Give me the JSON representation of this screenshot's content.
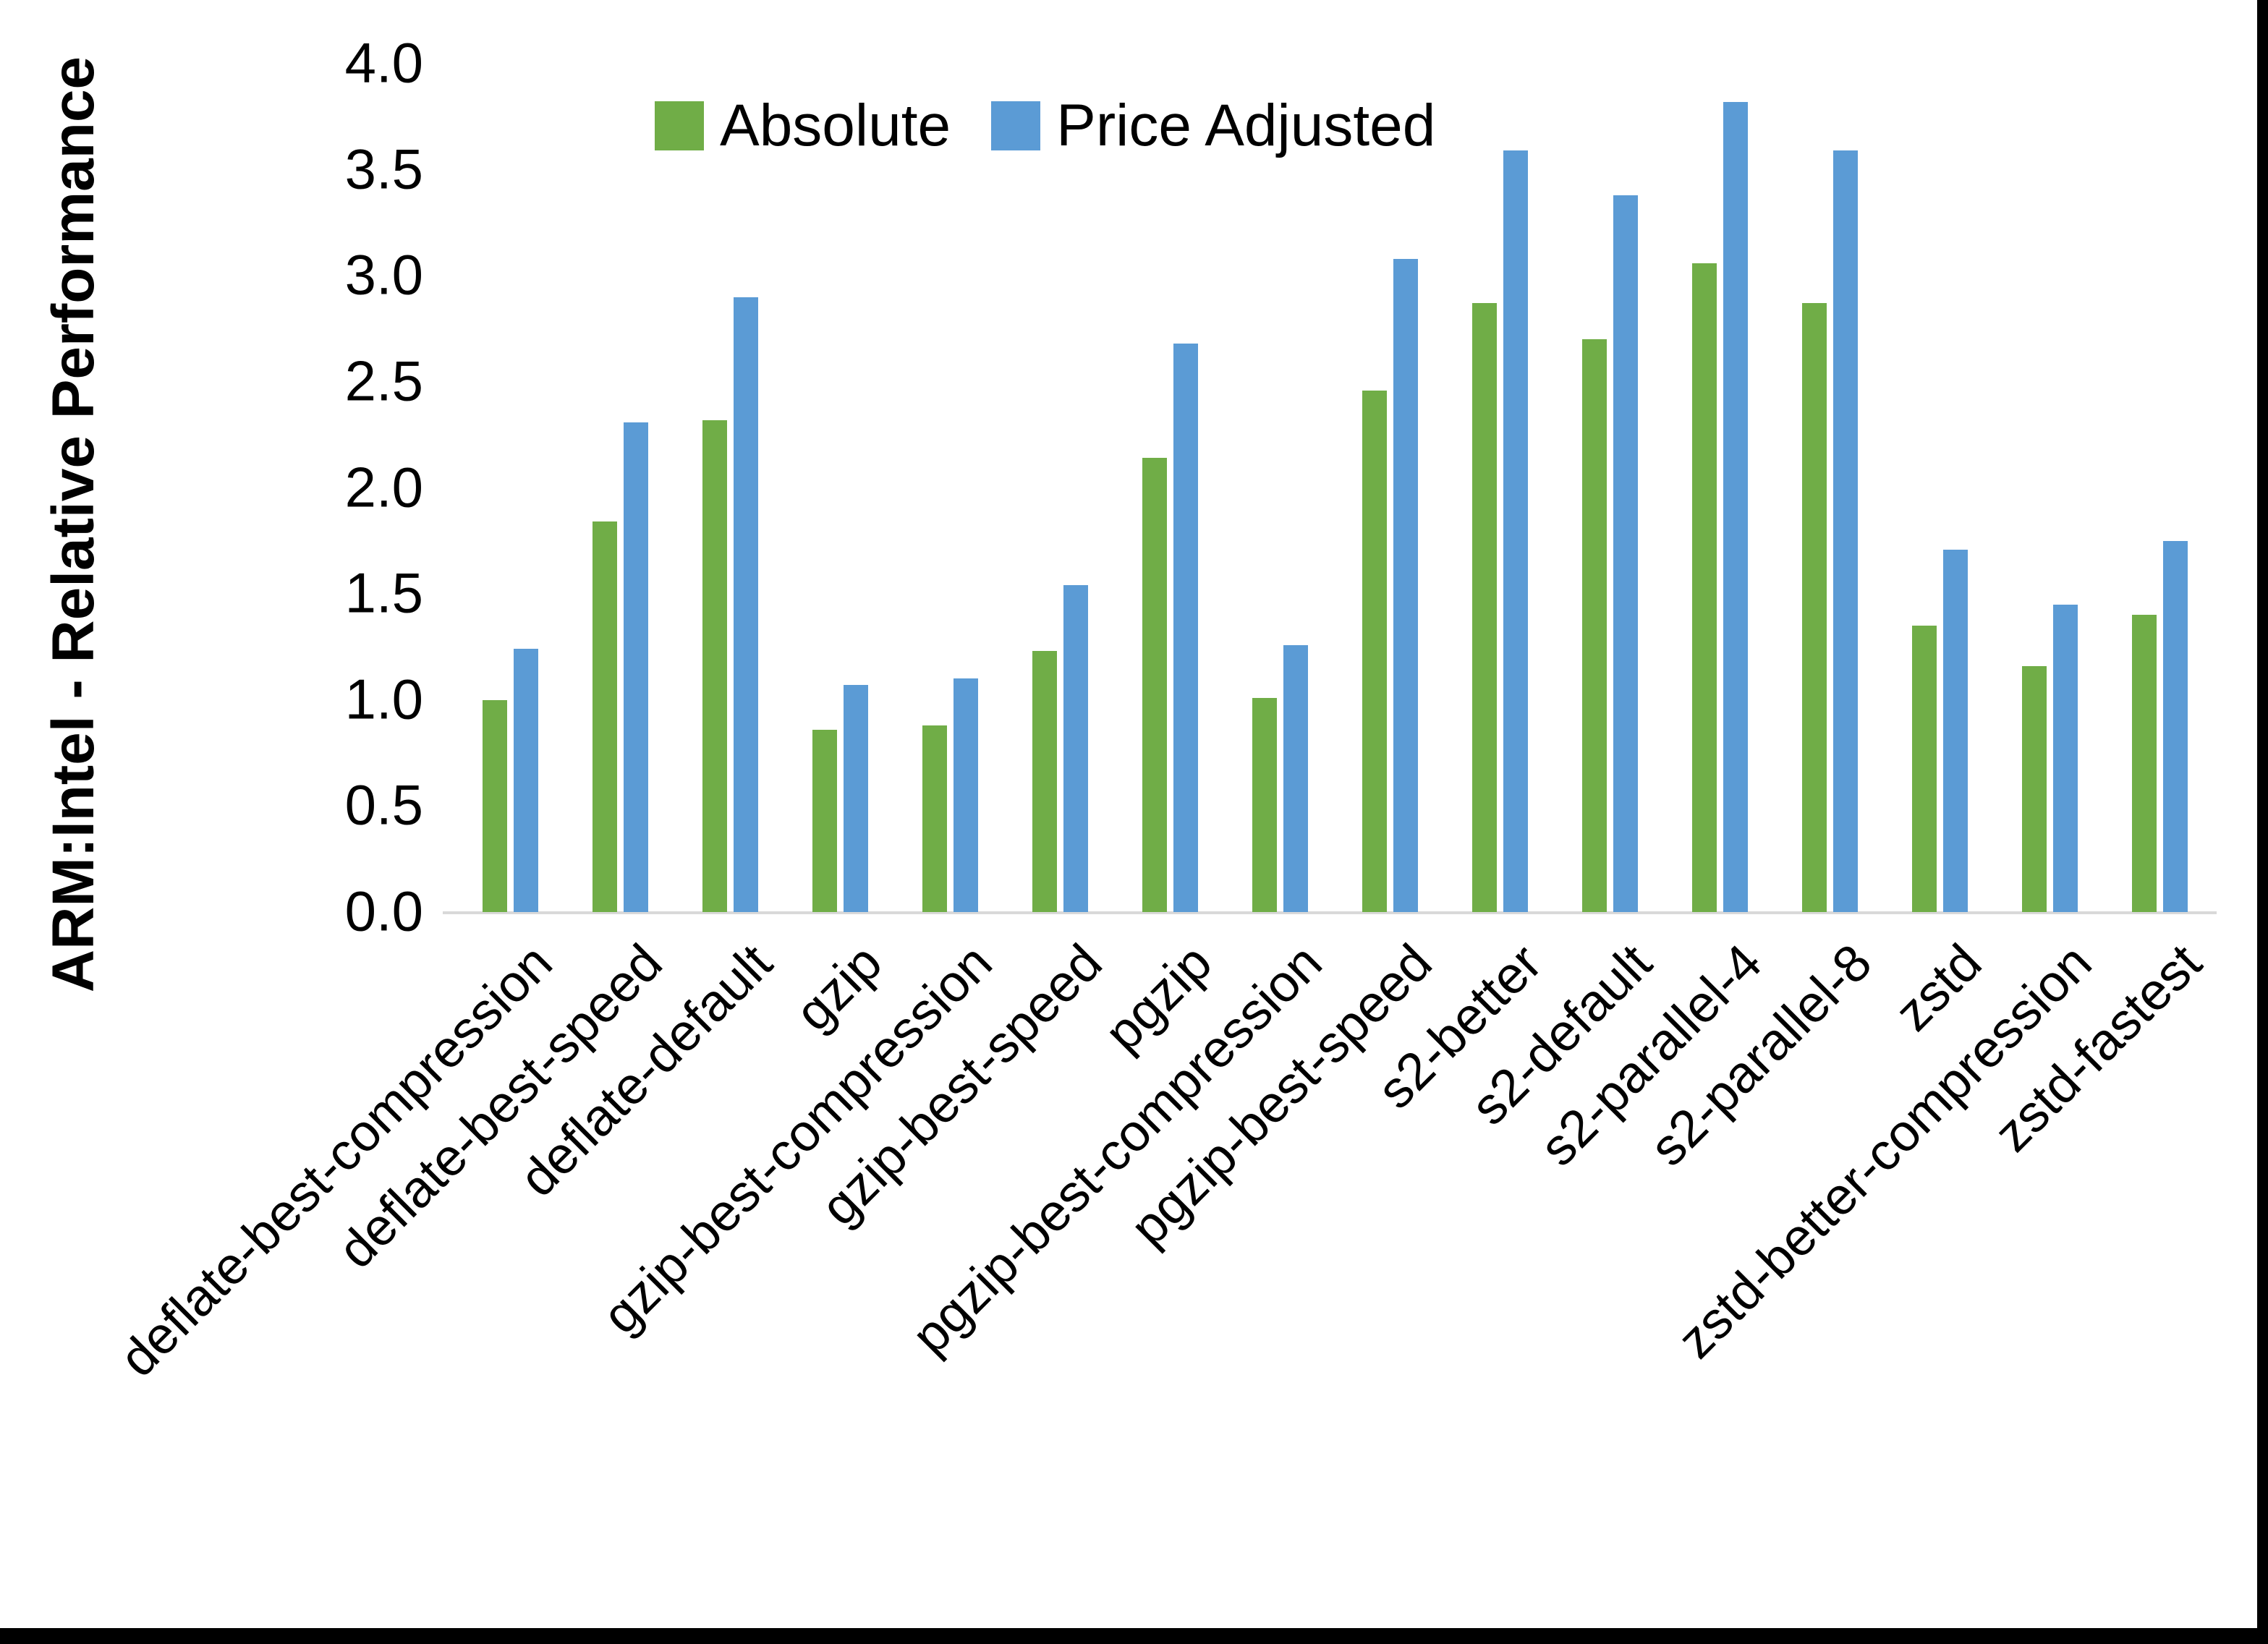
{
  "page": {
    "background_color": "#ffffff",
    "edge_border_color": "#000000"
  },
  "chart_data": {
    "type": "bar",
    "title": "",
    "xlabel": "",
    "ylabel": "ARM:Intel - Relative Performance",
    "ylim": [
      0.0,
      4.0
    ],
    "ytick_labels": [
      "0.0",
      "0.5",
      "1.0",
      "1.5",
      "2.0",
      "2.5",
      "3.0",
      "3.5",
      "4.0"
    ],
    "grid": false,
    "legend_position": "top-center",
    "axis_line_color": "#d9d9d9",
    "categories": [
      "deflate-best-compression",
      "deflate-best-speed",
      "deflate-default",
      "gzip",
      "gzip-best-compression",
      "gzip-best-speed",
      "pgzip",
      "pgzip-best-compression",
      "pgzip-best-speed",
      "s2-better",
      "s2-default",
      "s2-parallel-4",
      "s2-parallel-8",
      "zstd",
      "zstd-better-compression",
      "zstd-fastest"
    ],
    "series": [
      {
        "name": "Absolute",
        "color": "#70AD47",
        "values": [
          1.0,
          1.84,
          2.32,
          0.86,
          0.88,
          1.23,
          2.14,
          1.01,
          2.46,
          2.87,
          2.7,
          3.06,
          2.87,
          1.35,
          1.16,
          1.4
        ]
      },
      {
        "name": "Price Adjusted",
        "color": "#5B9BD5",
        "values": [
          1.24,
          2.31,
          2.9,
          1.07,
          1.1,
          1.54,
          2.68,
          1.26,
          3.08,
          3.59,
          3.38,
          3.82,
          3.59,
          1.71,
          1.45,
          1.75
        ]
      }
    ]
  }
}
